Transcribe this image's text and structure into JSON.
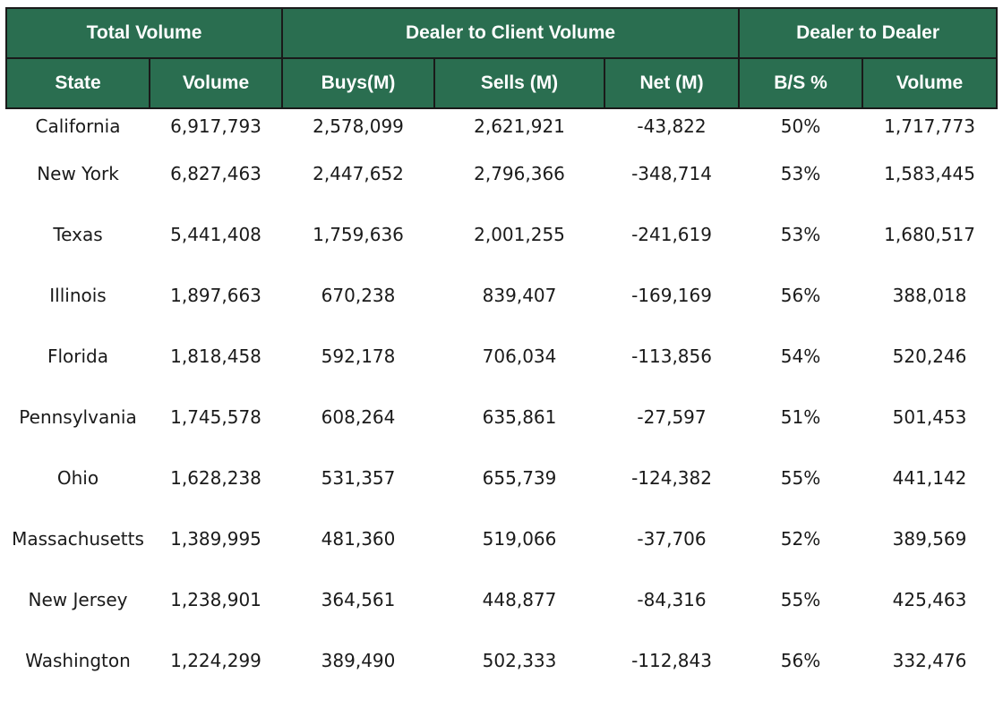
{
  "group_headers": {
    "total_volume": "Total Volume",
    "dealer_to_client": "Dealer to Client Volume",
    "dealer_to_dealer": "Dealer to Dealer"
  },
  "column_headers": [
    "State",
    "Volume",
    "Buys(M)",
    "Sells (M)",
    "Net (M)",
    "B/S %",
    "Volume"
  ],
  "rows": [
    [
      "California",
      "6,917,793",
      "2,578,099",
      "2,621,921",
      "-43,822",
      "50%",
      "1,717,773"
    ],
    [
      "New York",
      "6,827,463",
      "2,447,652",
      "2,796,366",
      "-348,714",
      "53%",
      "1,583,445"
    ],
    [
      "Texas",
      "5,441,408",
      "1,759,636",
      "2,001,255",
      "-241,619",
      "53%",
      "1,680,517"
    ],
    [
      "Illinois",
      "1,897,663",
      "670,238",
      "839,407",
      "-169,169",
      "56%",
      "388,018"
    ],
    [
      "Florida",
      "1,818,458",
      "592,178",
      "706,034",
      "-113,856",
      "54%",
      "520,246"
    ],
    [
      "Pennsylvania",
      "1,745,578",
      "608,264",
      "635,861",
      "-27,597",
      "51%",
      "501,453"
    ],
    [
      "Ohio",
      "1,628,238",
      "531,357",
      "655,739",
      "-124,382",
      "55%",
      "441,142"
    ],
    [
      "Massachusetts",
      "1,389,995",
      "481,360",
      "519,066",
      "-37,706",
      "52%",
      "389,569"
    ],
    [
      "New Jersey",
      "1,238,901",
      "364,561",
      "448,877",
      "-84,316",
      "55%",
      "425,463"
    ],
    [
      "Washington",
      "1,224,299",
      "389,490",
      "502,333",
      "-112,843",
      "56%",
      "332,476"
    ]
  ],
  "colors": {
    "header_bg": "#2a6e50",
    "header_text": "#ffffff",
    "border": "#1a1a1a",
    "cell_text": "#1a1a1a"
  }
}
